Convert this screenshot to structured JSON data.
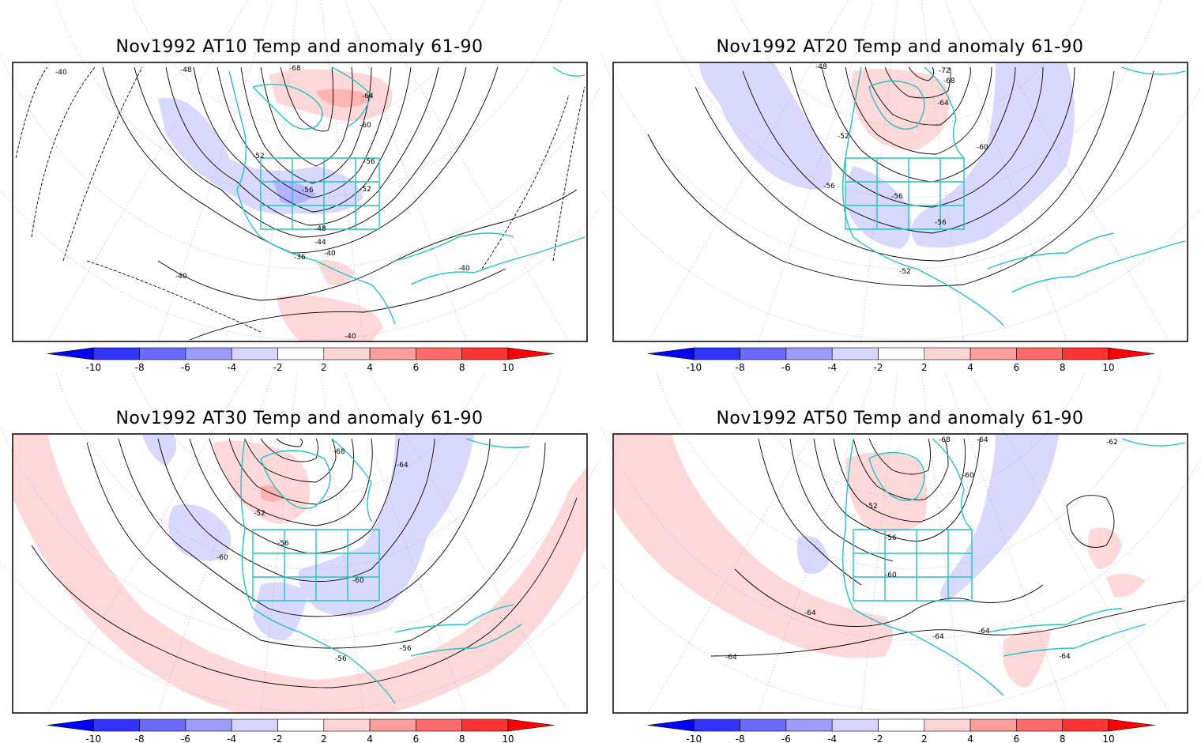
{
  "panels": [
    {
      "id": "at10",
      "title": "Nov1992 AT10 Temp and anomaly 61-90",
      "contour_labels": [
        "-40",
        "-48",
        "-68",
        "-64",
        "-60",
        "-52",
        "-56",
        "-52",
        "-56",
        "-48",
        "-44",
        "-40",
        "-36",
        "-40",
        "-40",
        "-40"
      ]
    },
    {
      "id": "at20",
      "title": "Nov1992 AT20 Temp and anomaly 61-90",
      "contour_labels": [
        "-48",
        "-72",
        "-68",
        "-64",
        "-52",
        "-60",
        "-56",
        "-56",
        "-56",
        "-52"
      ]
    },
    {
      "id": "at30",
      "title": "Nov1992 AT30 Temp and anomaly 61-90",
      "contour_labels": [
        "-68",
        "-64",
        "-52",
        "-56",
        "-60",
        "-60",
        "-56",
        "-56"
      ]
    },
    {
      "id": "at50",
      "title": "Nov1992 AT50 Temp and anomaly 61-90",
      "contour_labels": [
        "-68",
        "-64",
        "-62",
        "-60",
        "-52",
        "-56",
        "-60",
        "-64",
        "-64",
        "-64",
        "-64",
        "-64"
      ]
    }
  ],
  "colorbar": {
    "ticks": [
      "-10",
      "-8",
      "-6",
      "-4",
      "-2",
      "2",
      "4",
      "6",
      "8",
      "10"
    ],
    "colors": {
      "neg": [
        "#0000ff",
        "#3333ff",
        "#6a6aff",
        "#9c9cff",
        "#d6d6ff"
      ],
      "pos": [
        "#ffd6d6",
        "#ff9c9c",
        "#ff6a6a",
        "#ff3333",
        "#ff0000"
      ]
    }
  },
  "map_colors": {
    "coast": "#22c4c4",
    "frame": "#000000",
    "warm": "#ffd9d9",
    "cold": "#d9d9ff",
    "warm_strong": "#ffb3b3",
    "cold_strong": "#b3b3ff"
  }
}
